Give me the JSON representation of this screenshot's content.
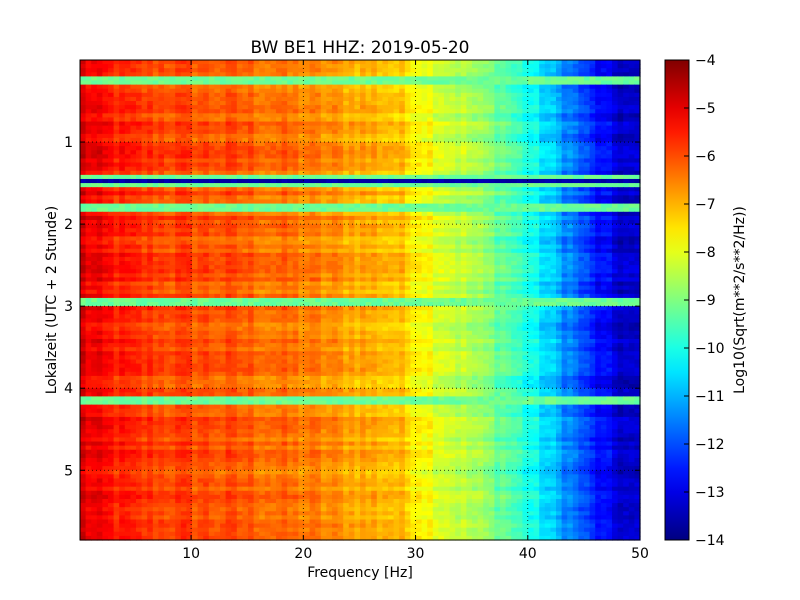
{
  "chart_data": {
    "type": "heatmap",
    "title": "BW BE1 HHZ: 2019-05-20",
    "xlabel": "Frequency [Hz]",
    "ylabel": "Lokalzeit (UTC + 2 Stunde)",
    "colorbar_label": "Log10(Sqrt(m**2/s**2/Hz))",
    "colormap": "jet",
    "xlim": [
      0.1,
      50
    ],
    "ylim": [
      5.85,
      0.0
    ],
    "y_inverted": true,
    "clim": [
      -14,
      -4
    ],
    "grid": true,
    "grid_style": "dotted",
    "x_ticks": [
      10,
      20,
      30,
      40,
      50
    ],
    "x_tick_labels": [
      "10",
      "20",
      "30",
      "40",
      "50"
    ],
    "y_ticks": [
      1,
      2,
      3,
      4,
      5
    ],
    "y_tick_labels": [
      "1",
      "2",
      "3",
      "4",
      "5"
    ],
    "colorbar_ticks": [
      -4,
      -5,
      -6,
      -7,
      -8,
      -9,
      -10,
      -11,
      -12,
      -13,
      -14
    ],
    "colorbar_tick_labels": [
      "−4",
      "−5",
      "−6",
      "−7",
      "−8",
      "−9",
      "−10",
      "−11",
      "−12",
      "−13",
      "−14"
    ],
    "spectrum_profile": {
      "frequency_hz": [
        0.1,
        1,
        5,
        10,
        15,
        20,
        25,
        28,
        30,
        32,
        35,
        38,
        40,
        42,
        44,
        46,
        48,
        50
      ],
      "log10_amplitude": [
        -4.8,
        -5.2,
        -5.8,
        -6.0,
        -6.2,
        -6.5,
        -6.9,
        -7.1,
        -7.5,
        -8.0,
        -8.6,
        -9.3,
        -10.0,
        -10.8,
        -11.6,
        -12.6,
        -13.2,
        -13.5
      ]
    },
    "data_gap_rows_hours": [
      [
        0.18,
        0.32
      ],
      [
        1.38,
        1.55
      ],
      [
        1.73,
        1.83
      ],
      [
        2.89,
        2.99
      ],
      [
        4.08,
        4.18
      ]
    ]
  }
}
